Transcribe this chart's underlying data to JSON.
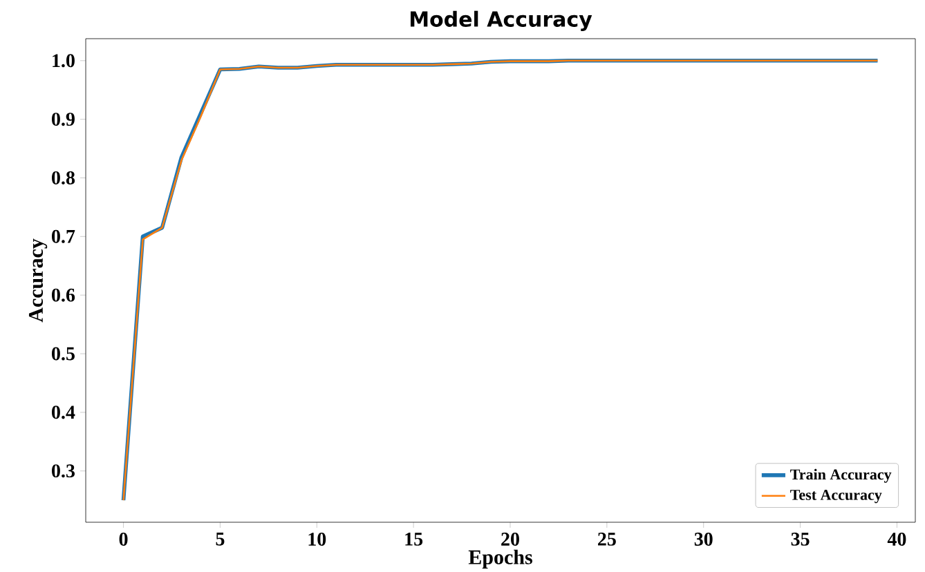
{
  "chart_data": {
    "type": "line",
    "title": "Model Accuracy",
    "xlabel": "Epochs",
    "ylabel": "Accuracy",
    "x": [
      0,
      1,
      2,
      3,
      4,
      5,
      6,
      7,
      8,
      9,
      10,
      11,
      12,
      13,
      14,
      15,
      16,
      17,
      18,
      19,
      20,
      21,
      22,
      23,
      24,
      25,
      26,
      27,
      28,
      29,
      30,
      31,
      32,
      33,
      34,
      35,
      36,
      37,
      38,
      39
    ],
    "series": [
      {
        "name": "Train Accuracy",
        "color": "#1f77b4",
        "values": [
          0.25,
          0.7,
          0.715,
          0.835,
          0.91,
          0.985,
          0.986,
          0.99,
          0.988,
          0.988,
          0.991,
          0.993,
          0.993,
          0.993,
          0.993,
          0.993,
          0.993,
          0.994,
          0.995,
          0.998,
          0.999,
          0.999,
          0.999,
          1.0,
          1.0,
          1.0,
          1.0,
          1.0,
          1.0,
          1.0,
          1.0,
          1.0,
          1.0,
          1.0,
          1.0,
          1.0,
          1.0,
          1.0,
          1.0,
          1.0
        ]
      },
      {
        "name": "Test Accuracy",
        "color": "#ff7f0e",
        "values": [
          0.25,
          0.695,
          0.715,
          0.83,
          0.905,
          0.985,
          0.986,
          0.99,
          0.988,
          0.988,
          0.991,
          0.993,
          0.993,
          0.993,
          0.993,
          0.993,
          0.993,
          0.994,
          0.995,
          0.998,
          0.999,
          0.999,
          0.999,
          1.0,
          1.0,
          1.0,
          1.0,
          1.0,
          1.0,
          1.0,
          1.0,
          1.0,
          1.0,
          1.0,
          1.0,
          1.0,
          1.0,
          1.0,
          1.0,
          1.0
        ]
      }
    ],
    "xlim": [
      -1.95,
      40.95
    ],
    "ylim": [
      0.2125,
      1.0375
    ],
    "xticks": [
      0,
      5,
      10,
      15,
      20,
      25,
      30,
      35,
      40
    ],
    "yticks": [
      0.3,
      0.4,
      0.5,
      0.6,
      0.7,
      0.8,
      0.9,
      {
        "value": 1.0,
        "label": "1.0"
      }
    ],
    "legend": "bottom right",
    "grid": false
  }
}
